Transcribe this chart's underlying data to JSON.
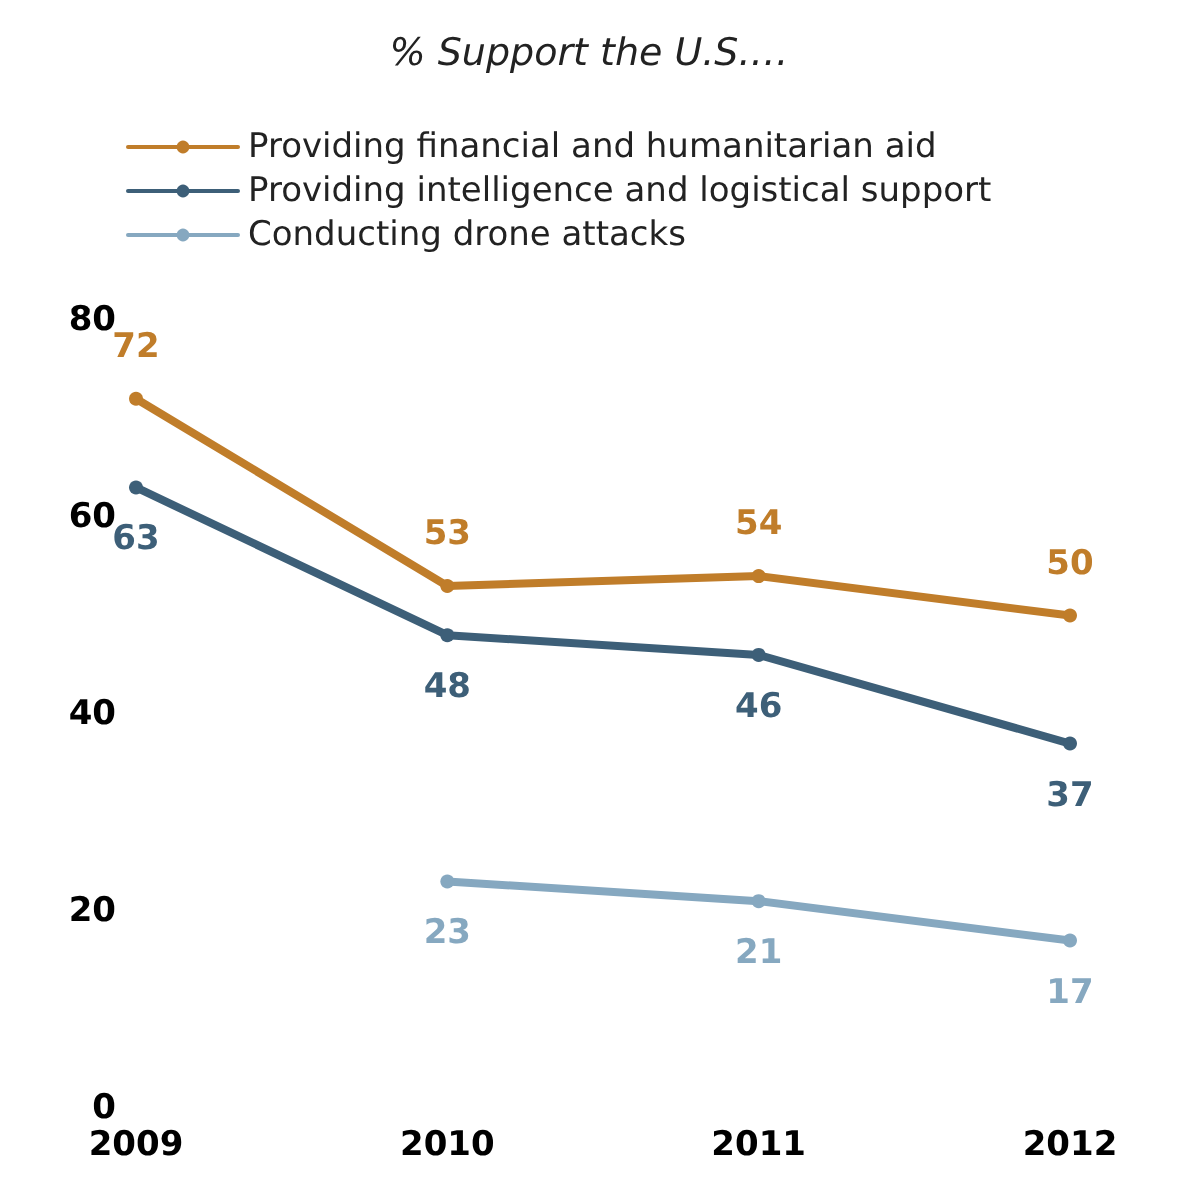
{
  "chart_data": {
    "type": "line",
    "title": "% Support the U.S.…",
    "categories": [
      "2009",
      "2010",
      "2011",
      "2012"
    ],
    "series": [
      {
        "name": "Providing financial and humanitarian aid",
        "color": "#c07d2a",
        "values": [
          72,
          53,
          54,
          50
        ]
      },
      {
        "name": "Providing intelligence and logistical support",
        "color": "#3d5f78",
        "values": [
          63,
          48,
          46,
          37
        ]
      },
      {
        "name": "Conducting drone attacks",
        "color": "#86a8c0",
        "values": [
          null,
          23,
          21,
          17
        ]
      }
    ],
    "ylim": [
      0,
      80
    ],
    "yticks": [
      0,
      20,
      40,
      60,
      80
    ],
    "grid": false,
    "legend": "top left",
    "marker": "circle",
    "line_style": "solid",
    "data_labels": true
  }
}
